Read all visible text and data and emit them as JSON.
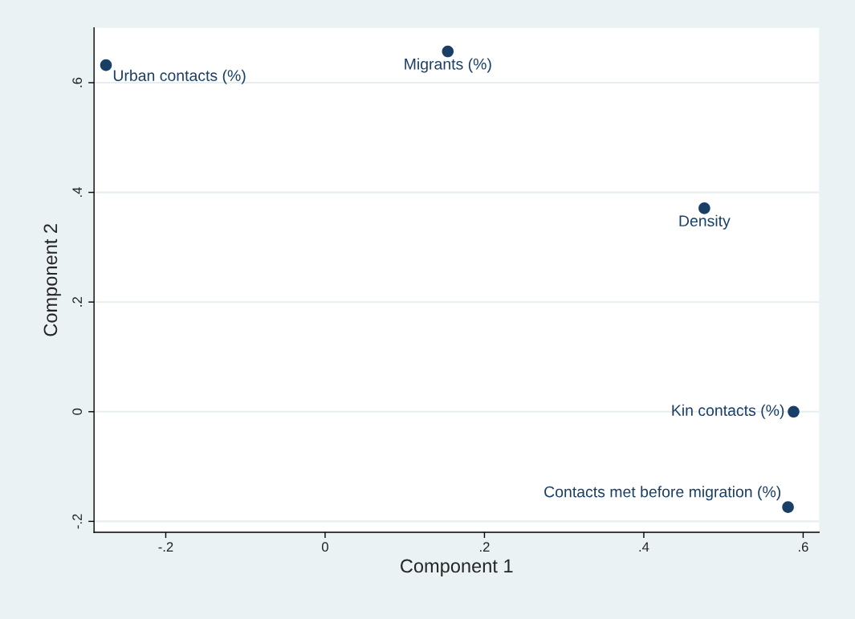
{
  "chart_data": {
    "type": "scatter",
    "xlabel": "Component 1",
    "ylabel": "Component 2",
    "x": [
      -0.275,
      0.154,
      0.476,
      0.588,
      0.581
    ],
    "series": [
      {
        "color": "#1a3f66",
        "values": [
          0.632,
          0.657,
          0.371,
          0.0,
          -0.174
        ]
      }
    ],
    "marker": "circle",
    "annotations": [
      {
        "text": "Urban contacts (%)",
        "x": -0.275,
        "y": 0.632
      },
      {
        "text": "Migrants (%)",
        "x": 0.154,
        "y": 0.657
      },
      {
        "text": "Density",
        "x": 0.476,
        "y": 0.371
      },
      {
        "text": "Kin contacts (%)",
        "x": 0.588,
        "y": 0.0
      },
      {
        "text": "Contacts met before migration (%)",
        "x": 0.581,
        "y": -0.174
      }
    ],
    "xlim": [
      -0.29,
      0.62
    ],
    "ylim": [
      -0.22,
      0.7
    ],
    "xticks": [
      {
        "value": -0.2,
        "label": "-.2"
      },
      0,
      {
        "value": 0.2,
        "label": ".2"
      },
      {
        "value": 0.4,
        "label": ".4"
      },
      {
        "value": 0.6,
        "label": ".6"
      }
    ],
    "yticks": [
      {
        "value": -0.2,
        "label": "-.2"
      },
      0,
      {
        "value": 0.2,
        "label": ".2"
      },
      {
        "value": 0.4,
        "label": ".4"
      },
      {
        "value": 0.6,
        "label": ".6"
      }
    ],
    "grid": "y",
    "legend": false
  }
}
